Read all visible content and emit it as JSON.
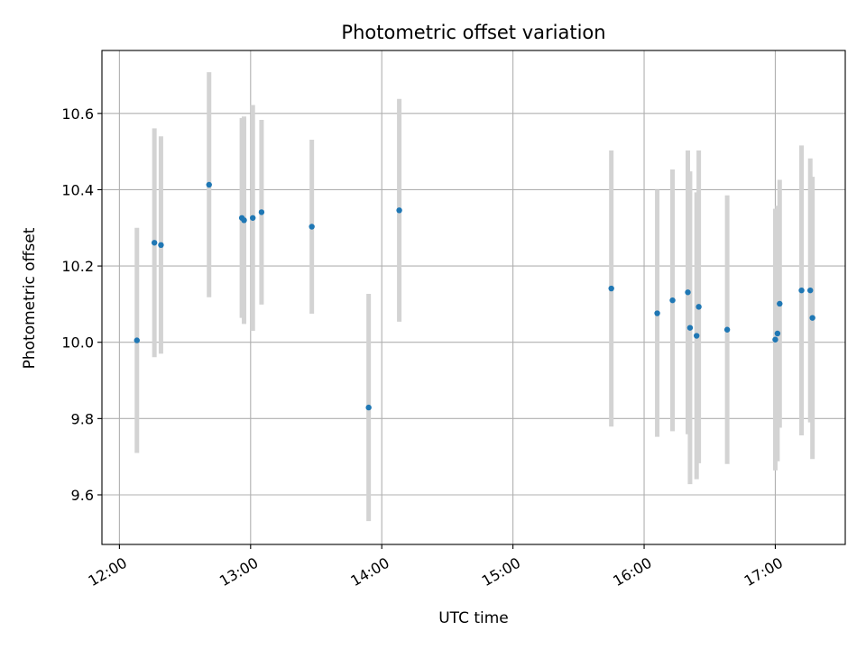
{
  "chart_data": {
    "type": "scatter",
    "title": "Photometric offset variation",
    "xlabel": "UTC time",
    "ylabel": "Photometric offset",
    "xlim": [
      "11:52",
      "17:32"
    ],
    "ylim": [
      9.47,
      10.765
    ],
    "grid": true,
    "x_ticks": [
      "12:00",
      "13:00",
      "14:00",
      "15:00",
      "16:00",
      "17:00"
    ],
    "y_ticks": [
      "9.6",
      "9.8",
      "10.0",
      "10.2",
      "10.4",
      "10.6"
    ],
    "colors": {
      "point": "#1f77b4",
      "errorbar": "#d3d3d3"
    },
    "points": [
      {
        "time": "12:08",
        "value": 10.005,
        "err": 0.295
      },
      {
        "time": "12:16",
        "value": 10.261,
        "err": 0.3
      },
      {
        "time": "12:19",
        "value": 10.255,
        "err": 0.285
      },
      {
        "time": "12:41",
        "value": 10.413,
        "err": 0.295
      },
      {
        "time": "12:56",
        "value": 10.326,
        "err": 0.262
      },
      {
        "time": "12:57",
        "value": 10.32,
        "err": 0.272
      },
      {
        "time": "13:01",
        "value": 10.326,
        "err": 0.296
      },
      {
        "time": "13:05",
        "value": 10.341,
        "err": 0.242
      },
      {
        "time": "13:28",
        "value": 10.303,
        "err": 0.228
      },
      {
        "time": "13:54",
        "value": 9.829,
        "err": 0.298
      },
      {
        "time": "14:08",
        "value": 10.346,
        "err": 0.292
      },
      {
        "time": "15:45",
        "value": 10.141,
        "err": 0.362
      },
      {
        "time": "16:06",
        "value": 10.076,
        "err": 0.324
      },
      {
        "time": "16:13",
        "value": 10.11,
        "err": 0.343
      },
      {
        "time": "16:20",
        "value": 10.131,
        "err": 0.372
      },
      {
        "time": "16:21",
        "value": 10.038,
        "err": 0.41
      },
      {
        "time": "16:24",
        "value": 10.017,
        "err": 0.376
      },
      {
        "time": "16:25",
        "value": 10.093,
        "err": 0.41
      },
      {
        "time": "16:38",
        "value": 10.033,
        "err": 0.352
      },
      {
        "time": "17:00",
        "value": 10.007,
        "err": 0.343
      },
      {
        "time": "17:01",
        "value": 10.023,
        "err": 0.335
      },
      {
        "time": "17:02",
        "value": 10.101,
        "err": 0.325
      },
      {
        "time": "17:12",
        "value": 10.136,
        "err": 0.38
      },
      {
        "time": "17:16",
        "value": 10.136,
        "err": 0.346
      },
      {
        "time": "17:17",
        "value": 10.064,
        "err": 0.37
      }
    ]
  }
}
